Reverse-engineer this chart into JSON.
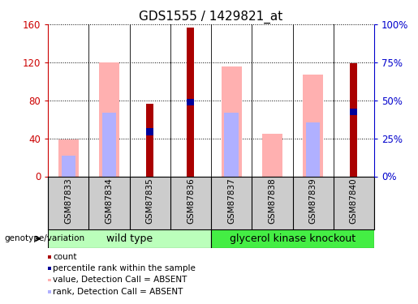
{
  "title": "GDS1555 / 1429821_at",
  "samples": [
    "GSM87833",
    "GSM87834",
    "GSM87835",
    "GSM87836",
    "GSM87837",
    "GSM87838",
    "GSM87839",
    "GSM87840"
  ],
  "count_values": [
    0,
    0,
    76,
    157,
    0,
    0,
    0,
    119
  ],
  "percentile_rank": [
    0,
    0,
    47,
    78,
    0,
    0,
    0,
    68
  ],
  "value_absent": [
    39,
    120,
    0,
    0,
    116,
    45,
    107,
    0
  ],
  "rank_absent": [
    22,
    67,
    0,
    0,
    67,
    0,
    57,
    0
  ],
  "ylim_left": [
    0,
    160
  ],
  "ylim_right": [
    0,
    100
  ],
  "yticks_left": [
    0,
    40,
    80,
    120,
    160
  ],
  "yticks_right": [
    0,
    25,
    50,
    75,
    100
  ],
  "ytick_labels_left": [
    "0",
    "40",
    "80",
    "120",
    "160"
  ],
  "ytick_labels_right": [
    "0%",
    "25%",
    "50%",
    "75%",
    "100%"
  ],
  "colors": {
    "count": "#aa0000",
    "percentile": "#000099",
    "value_absent": "#ffb0b0",
    "rank_absent": "#b0b0ff",
    "axis_left": "#cc0000",
    "axis_right": "#0000cc",
    "group_wt": "#bbffbb",
    "group_gk": "#44ee44",
    "label_bg": "#cccccc"
  },
  "legend_items": [
    {
      "color": "#aa0000",
      "label": "count"
    },
    {
      "color": "#000099",
      "label": "percentile rank within the sample"
    },
    {
      "color": "#ffb0b0",
      "label": "value, Detection Call = ABSENT"
    },
    {
      "color": "#b0b0ff",
      "label": "rank, Detection Call = ABSENT"
    }
  ],
  "group_label": "genotype/variation"
}
